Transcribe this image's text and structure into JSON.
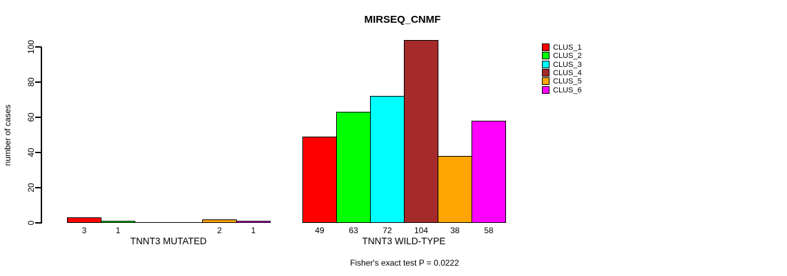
{
  "title": "MIRSEQ_CNMF",
  "y_axis": {
    "label": "number of cases",
    "tick_labels": [
      "0",
      "20",
      "40",
      "60",
      "80",
      "100"
    ]
  },
  "footer": {
    "text": "Fisher's exact test P = 0.0222"
  },
  "legend": {
    "position": "right",
    "items": [
      {
        "label": "CLUS_1",
        "color": "#FF0000"
      },
      {
        "label": "CLUS_2",
        "color": "#00FF00"
      },
      {
        "label": "CLUS_3",
        "color": "#00FFFF"
      },
      {
        "label": "CLUS_4",
        "color": "#A52A2A"
      },
      {
        "label": "CLUS_5",
        "color": "#FFA500"
      },
      {
        "label": "CLUS_6",
        "color": "#FF00FF"
      }
    ]
  },
  "chart_data": {
    "type": "bar",
    "title": "MIRSEQ_CNMF",
    "ylabel": "number of cases",
    "xlabel": "",
    "ylim": [
      0,
      100
    ],
    "yticks": [
      0,
      20,
      40,
      60,
      80,
      100
    ],
    "grid": false,
    "legend_position": "right",
    "series": [
      "CLUS_1",
      "CLUS_2",
      "CLUS_3",
      "CLUS_4",
      "CLUS_5",
      "CLUS_6"
    ],
    "series_colors": [
      "#FF0000",
      "#00FF00",
      "#00FFFF",
      "#A52A2A",
      "#FFA500",
      "#FF00FF"
    ],
    "groups": [
      {
        "label": "TNNT3 MUTATED",
        "values": [
          3,
          1,
          0,
          0,
          2,
          1
        ]
      },
      {
        "label": "TNNT3 WILD-TYPE",
        "values": [
          49,
          63,
          72,
          104,
          38,
          58
        ]
      }
    ],
    "bar_value_labels": "shown under each bar when value > 0",
    "annotation": "Fisher's exact test P = 0.0222"
  }
}
